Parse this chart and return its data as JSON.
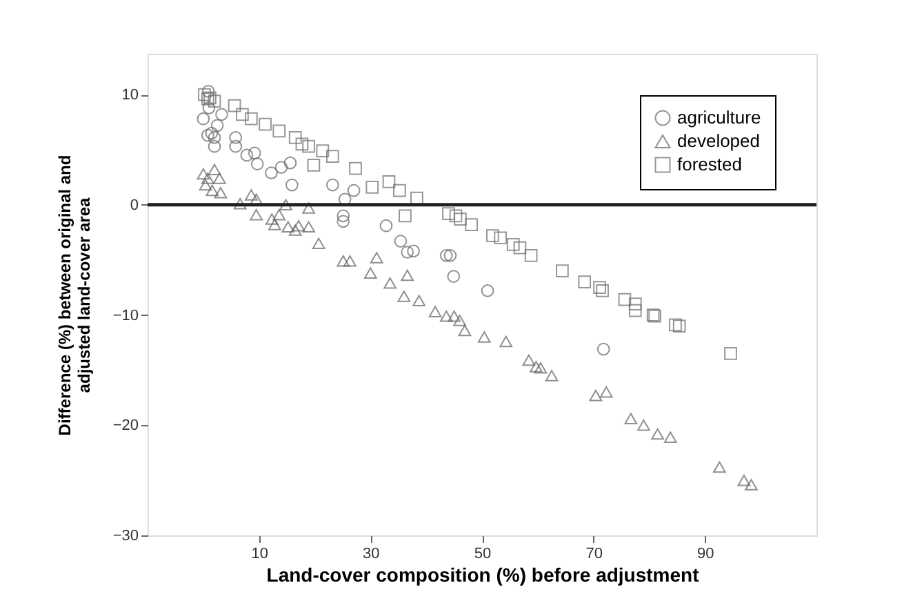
{
  "chart_data": {
    "type": "scatter",
    "xlabel": "Land-cover composition (%) before adjustment",
    "ylabel": "Difference (%) between original and\nadjusted land-cover area",
    "xlim": [
      -10,
      110
    ],
    "xticks": [
      10,
      30,
      50,
      70,
      90
    ],
    "ylim": [
      -30,
      13.7
    ],
    "yticks": [
      -30,
      -20,
      -10,
      0,
      10
    ],
    "grid": false,
    "legend": "top right",
    "ref_lines": [
      {
        "axis": "y",
        "value": 0,
        "color": "#222222"
      }
    ],
    "series": [
      {
        "name": "agriculture",
        "color": "#666666",
        "marker": "circle",
        "x": [
          0.9,
          0,
          0.8,
          1,
          1.5,
          2,
          2,
          2.5,
          3.3,
          5.8,
          5.8,
          7.8,
          9.2,
          9.7,
          12.2,
          14,
          15.6,
          15.9,
          23.2,
          27,
          25.4,
          25.1,
          25.1,
          32.8,
          35.4,
          36.6,
          37.7,
          43.6,
          44.3,
          44.9,
          51,
          71.8
        ],
        "values": [
          10.3,
          7.8,
          6.3,
          8.8,
          6.5,
          6.1,
          5.3,
          7.2,
          8.2,
          6.1,
          5.3,
          4.5,
          4.7,
          3.7,
          2.9,
          3.4,
          3.8,
          1.8,
          1.8,
          1.3,
          0.5,
          -1,
          -1.5,
          -1.9,
          -3.3,
          -4.3,
          -4.2,
          -4.6,
          -4.6,
          -6.5,
          -7.8,
          -13.1
        ]
      },
      {
        "name": "developed",
        "color": "#606060",
        "marker": "triangle",
        "x": [
          0,
          0.8,
          2,
          2.9,
          0.4,
          1.6,
          3.1,
          6.6,
          8.6,
          9.5,
          9.5,
          12.3,
          13.6,
          12.8,
          14.8,
          15.2,
          16.5,
          17.1,
          18.9,
          18.9,
          20.7,
          25.1,
          26.3,
          31.1,
          30,
          33.5,
          36.6,
          36,
          38.7,
          41.6,
          43.6,
          45.0,
          46.0,
          46.9,
          50.4,
          54.3,
          58.4,
          59.7,
          60.5,
          62.5,
          70.4,
          72.3,
          76.7,
          79,
          81.5,
          83.8,
          92.6,
          97,
          98.3
        ],
        "values": [
          2.8,
          2.4,
          3.2,
          2.4,
          1.8,
          1.3,
          1.1,
          0.1,
          0.9,
          0.5,
          -0.9,
          -1.3,
          -0.9,
          -1.8,
          0,
          -2,
          -2.3,
          -1.9,
          -2,
          -0.3,
          -3.5,
          -5.1,
          -5.1,
          -4.8,
          -6.2,
          -7.1,
          -6.4,
          -8.3,
          -8.7,
          -9.7,
          -10.1,
          -10.1,
          -10.5,
          -11.4,
          -12,
          -12.4,
          -14.1,
          -14.7,
          -14.8,
          -15.5,
          -17.3,
          -17,
          -19.4,
          -20,
          -20.8,
          -21.1,
          -23.8,
          -25,
          -25.4
        ]
      },
      {
        "name": "forested",
        "color": "#6c6c6c",
        "marker": "square",
        "x": [
          0.2,
          0.8,
          1.2,
          2,
          5.6,
          7,
          8.6,
          11.1,
          13.6,
          16.5,
          17.7,
          18.9,
          19.8,
          21.4,
          23.2,
          27.3,
          30.3,
          33.3,
          35.2,
          36.2,
          38.3,
          44,
          45.3,
          46.1,
          48.1,
          51.9,
          53.3,
          55.6,
          56.8,
          58.8,
          64.4,
          68.4,
          71.1,
          71.6,
          75.6,
          77.5,
          77.5,
          80.7,
          81,
          84.7,
          85.4,
          94.6
        ],
        "values": [
          10,
          9.6,
          9.7,
          9.4,
          9,
          8.2,
          7.8,
          7.3,
          6.7,
          6.1,
          5.5,
          5.3,
          3.6,
          4.9,
          4.4,
          3.3,
          1.6,
          2.1,
          1.3,
          -1,
          0.6,
          -0.8,
          -1,
          -1.3,
          -1.8,
          -2.8,
          -3,
          -3.6,
          -3.9,
          -4.6,
          -6,
          -7,
          -7.5,
          -7.8,
          -8.6,
          -9,
          -9.6,
          -10,
          -10.1,
          -10.9,
          -11,
          -13.5
        ]
      }
    ]
  }
}
